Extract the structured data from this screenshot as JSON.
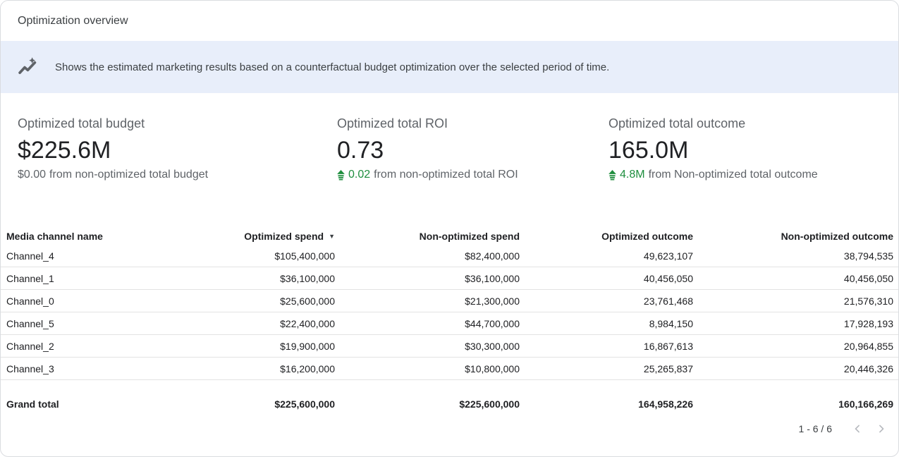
{
  "header": {
    "title": "Optimization overview"
  },
  "banner": {
    "icon": "insights-icon",
    "text": "Shows the estimated marketing results based on a counterfactual budget optimization over the selected period of time."
  },
  "kpis": [
    {
      "label": "Optimized total budget",
      "value": "$225.6M",
      "delta_value": "$0.00",
      "delta_text": "from non-optimized total budget",
      "delta_positive": false
    },
    {
      "label": "Optimized total ROI",
      "value": "0.73",
      "delta_value": "0.02",
      "delta_text": "from non-optimized total ROI",
      "delta_positive": true
    },
    {
      "label": "Optimized total outcome",
      "value": "165.0M",
      "delta_value": "4.8M",
      "delta_text": "from Non-optimized total outcome",
      "delta_positive": true
    }
  ],
  "table": {
    "columns": [
      "Media channel name",
      "Optimized spend",
      "Non-optimized spend",
      "Optimized outcome",
      "Non-optimized outcome"
    ],
    "sorted_column": "Optimized spend",
    "sort_direction": "desc",
    "sort_indicator": "▼",
    "rows": [
      [
        "Channel_4",
        "$105,400,000",
        "$82,400,000",
        "49,623,107",
        "38,794,535"
      ],
      [
        "Channel_1",
        "$36,100,000",
        "$36,100,000",
        "40,456,050",
        "40,456,050"
      ],
      [
        "Channel_0",
        "$25,600,000",
        "$21,300,000",
        "23,761,468",
        "21,576,310"
      ],
      [
        "Channel_5",
        "$22,400,000",
        "$44,700,000",
        "8,984,150",
        "17,928,193"
      ],
      [
        "Channel_2",
        "$19,900,000",
        "$30,300,000",
        "16,867,613",
        "20,964,855"
      ],
      [
        "Channel_3",
        "$16,200,000",
        "$10,800,000",
        "25,265,837",
        "20,446,326"
      ]
    ],
    "grand_total": [
      "Grand total",
      "$225,600,000",
      "$225,600,000",
      "164,958,226",
      "160,166,269"
    ]
  },
  "pagination": {
    "range_label": "1 - 6 / 6"
  },
  "colors": {
    "banner_bg": "#e8eefa",
    "positive_green": "#1e8e3e",
    "text_primary": "#202124",
    "text_secondary": "#5f6368",
    "divider": "#e3e3e3",
    "card_border": "#dadce0"
  }
}
